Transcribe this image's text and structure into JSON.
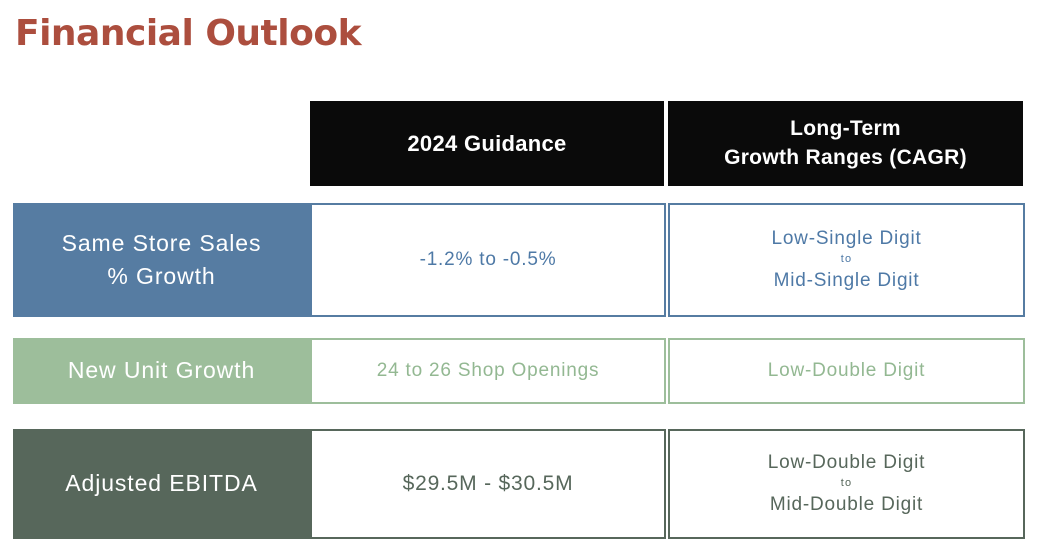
{
  "title": "Financial Outlook",
  "palette": {
    "title_color": "#AC4E3E",
    "header_bg": "#0A0A0A",
    "header_text": "#FFFFFF",
    "row1_color": "#567CA2",
    "row2_color": "#9DBE9B",
    "row3_color": "#57675B",
    "value_cell_bg": "#FFFFFF"
  },
  "table": {
    "column_headers": [
      {
        "line1": "2024 Guidance"
      },
      {
        "line1": "Long-Term",
        "line2": "Growth Ranges (CAGR)"
      }
    ],
    "rows": [
      {
        "label_line1": "Same Store Sales",
        "label_line2": "% Growth",
        "guidance": "-1.2% to -0.5%",
        "range_line1": "Low-Single Digit",
        "range_connector": "to",
        "range_line2": "Mid-Single Digit",
        "color": "#567CA2"
      },
      {
        "label_line1": "New Unit Growth",
        "guidance": "24 to 26 Shop Openings",
        "range_line1": "Low-Double Digit",
        "color": "#9DBE9B"
      },
      {
        "label_line1": "Adjusted EBITDA",
        "guidance": "$29.5M - $30.5M",
        "range_line1": "Low-Double Digit",
        "range_connector": "to",
        "range_line2": "Mid-Double Digit",
        "color": "#57675B"
      }
    ]
  }
}
